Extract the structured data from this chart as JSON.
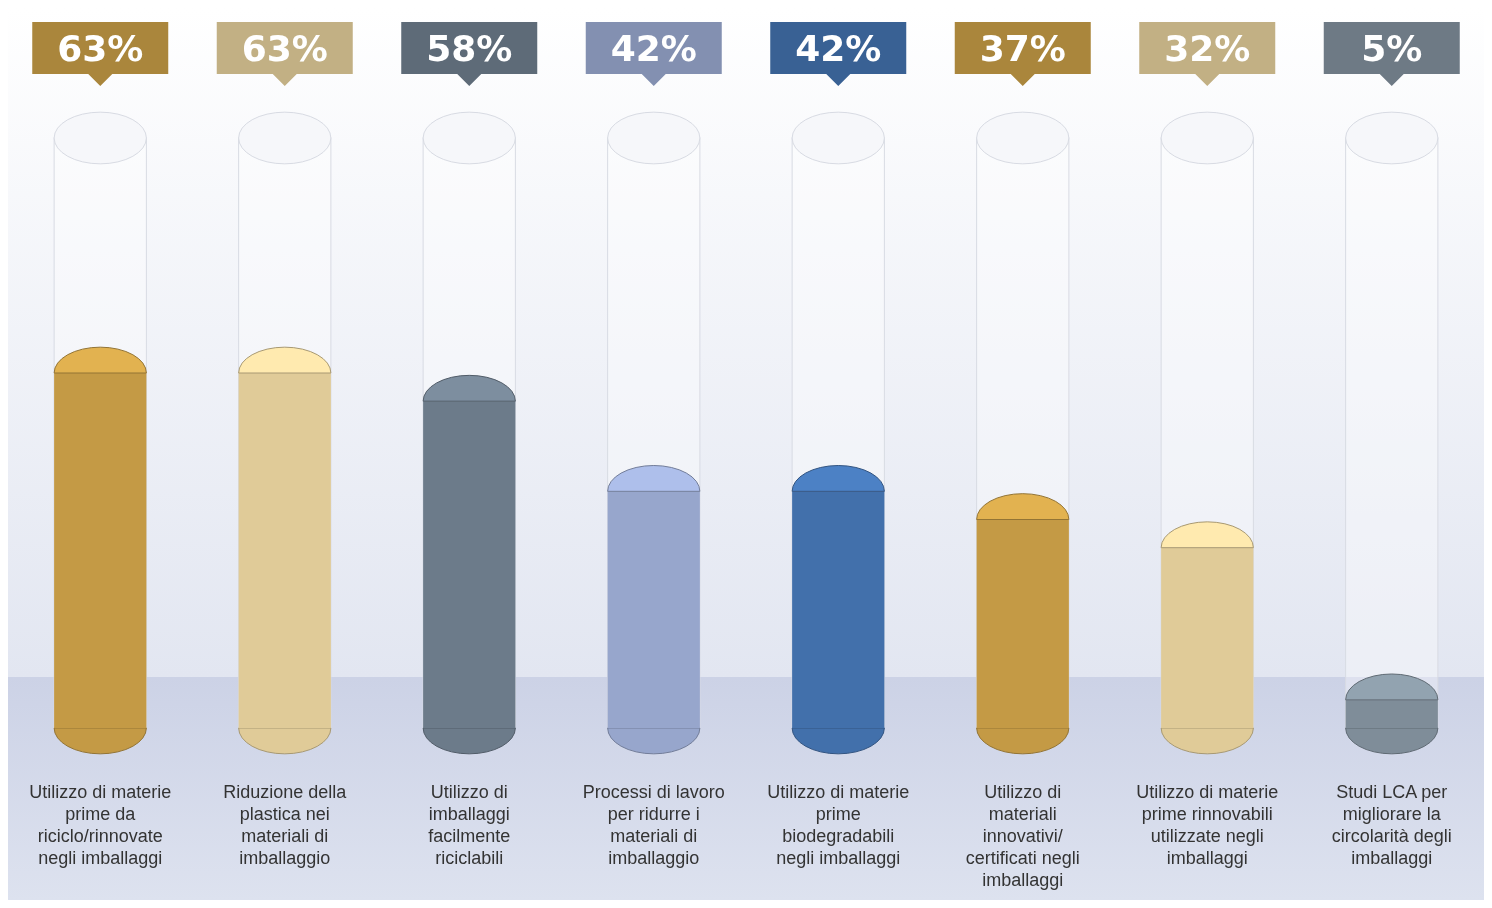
{
  "chart_data": {
    "type": "bar",
    "categories": [
      "Utilizzo di materie prime da riciclo/rinnovate negli imballaggi",
      "Riduzione della plastica nei materiali di imballaggio",
      "Utilizzo di imballaggi facilmente riciclabili",
      "Processi di lavoro per ridurre i materiali di imballaggio",
      "Utilizzo di materie prime biodegradabili negli imballaggi",
      "Utilizzo di materiali innovativi/ certificati negli imballaggi",
      "Utilizzo di materie prime rinnovabili utilizzate negli imballaggi",
      "Studi LCA per migliorare la circolarità degli imballaggi"
    ],
    "values": [
      63,
      63,
      58,
      42,
      42,
      37,
      32,
      5
    ],
    "value_labels": [
      "63%",
      "63%",
      "58%",
      "42%",
      "42%",
      "37%",
      "32%",
      "5%"
    ],
    "colors": [
      "#c49a45",
      "#e0cb98",
      "#6c7b8a",
      "#97a6cc",
      "#4270ab",
      "#c49a45",
      "#e0cb98",
      "#7f8d99"
    ]
  }
}
